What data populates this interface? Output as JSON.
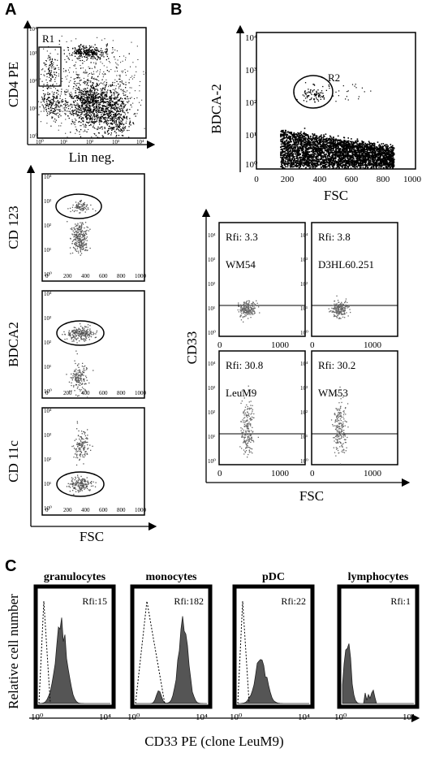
{
  "panel_labels": {
    "a": "A",
    "b": "B",
    "c": "C"
  },
  "panel_a": {
    "top": {
      "xlabel": "Lin neg.",
      "ylabel": "CD4 PE",
      "gate": "R1",
      "xticks": [
        "10⁰",
        "10¹",
        "10²",
        "10³",
        "10⁴"
      ],
      "yticks": [
        "10⁰",
        "10¹",
        "10²",
        "10³",
        "10⁴"
      ]
    },
    "bottom": {
      "xlabel": "FSC",
      "xticks": [
        "0",
        "200",
        "400",
        "600",
        "800",
        "1000"
      ],
      "yticks": [
        "10⁰",
        "10¹",
        "10²",
        "10³",
        "10⁴"
      ],
      "plots": [
        {
          "ylabel": "CD 123"
        },
        {
          "ylabel": "BDCA2"
        },
        {
          "ylabel": "CD 11c"
        }
      ]
    }
  },
  "panel_b": {
    "top": {
      "ylabel": "BDCA-2",
      "xlabel": "FSC",
      "gate": "R2",
      "xticks": [
        "0",
        "200",
        "400",
        "600",
        "800",
        "1000"
      ],
      "yticks": [
        "10⁰",
        "10¹",
        "10²",
        "10³",
        "10⁴"
      ]
    },
    "grid": {
      "xlabel": "FSC",
      "ylabel": "CD33",
      "xticks": [
        "0",
        "1000"
      ],
      "yticks": [
        "10⁰",
        "10¹",
        "10²",
        "10³",
        "10⁴"
      ],
      "plots": [
        {
          "rfi": "Rfi: 3.3",
          "clone": "WM54"
        },
        {
          "rfi": "Rfi: 3.8",
          "clone": "D3HL60.251"
        },
        {
          "rfi": "Rfi: 30.8",
          "clone": "LeuM9"
        },
        {
          "rfi": "Rfi: 30.2",
          "clone": "WM53"
        }
      ]
    }
  },
  "panel_c": {
    "ylabel": "Relative cell number",
    "xlabel": "CD33 PE  (clone LeuM9)",
    "xticks": [
      "10⁰",
      "10⁴"
    ],
    "histograms": [
      {
        "title": "granulocytes",
        "rfi": "Rfi:15"
      },
      {
        "title": "monocytes",
        "rfi": "Rfi:182"
      },
      {
        "title": "pDC",
        "rfi": "Rfi:22"
      },
      {
        "title": "lymphocytes",
        "rfi": "Rfi:1"
      }
    ]
  },
  "chart_data": [
    {
      "type": "scatter",
      "panel": "A-top",
      "xlabel": "Lin neg.",
      "ylabel": "CD4 PE",
      "xscale": "log",
      "yscale": "log",
      "xlim": [
        1,
        10000
      ],
      "ylim": [
        1,
        10000
      ],
      "gate": "R1"
    },
    {
      "type": "scatter",
      "panel": "A-1",
      "xlabel": "FSC",
      "ylabel": "CD 123",
      "xlim": [
        0,
        1000
      ],
      "ylim": [
        1,
        10000
      ],
      "yscale": "log",
      "clusters": [
        {
          "x": 370,
          "y": 650
        },
        {
          "x": 370,
          "y": 25
        }
      ]
    },
    {
      "type": "scatter",
      "panel": "A-2",
      "xlabel": "FSC",
      "ylabel": "BDCA2",
      "xlim": [
        0,
        1000
      ],
      "ylim": [
        1,
        10000
      ],
      "yscale": "log",
      "clusters": [
        {
          "x": 370,
          "y": 250
        },
        {
          "x": 350,
          "y": 4
        }
      ]
    },
    {
      "type": "scatter",
      "panel": "A-3",
      "xlabel": "FSC",
      "ylabel": "CD 11c",
      "xlim": [
        0,
        1000
      ],
      "ylim": [
        1,
        10000
      ],
      "yscale": "log",
      "clusters": [
        {
          "x": 370,
          "y": 250
        },
        {
          "x": 370,
          "y": 8
        }
      ]
    },
    {
      "type": "scatter",
      "panel": "B-top",
      "xlabel": "FSC",
      "ylabel": "BDCA-2",
      "xlim": [
        0,
        1000
      ],
      "ylim": [
        1,
        10000
      ],
      "yscale": "log",
      "gate": "R2"
    },
    {
      "type": "scatter",
      "panel": "B-1",
      "xlabel": "FSC",
      "ylabel": "CD33",
      "xlim": [
        0,
        1000
      ],
      "ylim": [
        1,
        10000
      ],
      "yscale": "log",
      "rfi": 3.3,
      "clone": "WM54",
      "hline": 10
    },
    {
      "type": "scatter",
      "panel": "B-2",
      "xlabel": "FSC",
      "ylabel": "CD33",
      "xlim": [
        0,
        1000
      ],
      "ylim": [
        1,
        10000
      ],
      "yscale": "log",
      "rfi": 3.8,
      "clone": "D3HL60.251",
      "hline": 10
    },
    {
      "type": "scatter",
      "panel": "B-3",
      "xlabel": "FSC",
      "ylabel": "CD33",
      "xlim": [
        0,
        1000
      ],
      "ylim": [
        1,
        10000
      ],
      "yscale": "log",
      "rfi": 30.8,
      "clone": "LeuM9",
      "hline": 10
    },
    {
      "type": "scatter",
      "panel": "B-4",
      "xlabel": "FSC",
      "ylabel": "CD33",
      "xlim": [
        0,
        1000
      ],
      "ylim": [
        1,
        10000
      ],
      "yscale": "log",
      "rfi": 30.2,
      "clone": "WM53",
      "hline": 10
    },
    {
      "type": "area",
      "panel": "C",
      "xlabel": "CD33 PE  (clone LeuM9)",
      "ylabel": "Relative cell number",
      "xscale": "log",
      "xlim": [
        1,
        10000
      ],
      "series": [
        {
          "name": "granulocytes",
          "rfi": 15,
          "peak_log10": 1.2
        },
        {
          "name": "monocytes",
          "rfi": 182,
          "peak_log10": 2.7
        },
        {
          "name": "pDC",
          "rfi": 22,
          "peak_log10": 1.25
        },
        {
          "name": "lymphocytes",
          "rfi": 1,
          "peak_log10": 0.2
        }
      ]
    }
  ]
}
